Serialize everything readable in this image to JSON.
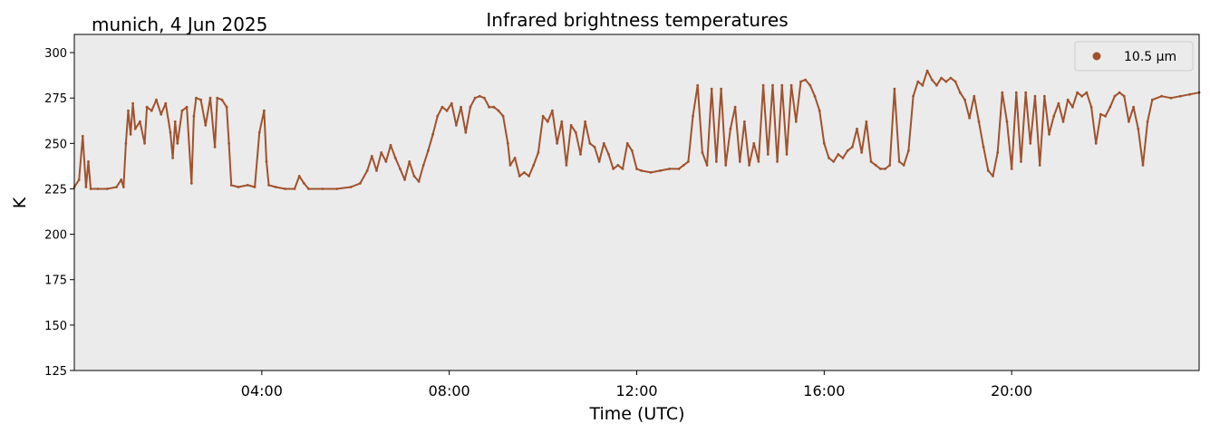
{
  "chart_data": {
    "type": "scatter",
    "title": "Infrared brightness temperatures",
    "subtitle": "munich, 4 Jun 2025",
    "xlabel": "Time (UTC)",
    "ylabel": "K",
    "x_unit": "hours UTC",
    "xlim": [
      0,
      24
    ],
    "ylim": [
      125,
      310
    ],
    "yticks": [
      125,
      150,
      175,
      200,
      225,
      250,
      275,
      300
    ],
    "xticks": [
      {
        "value": 4,
        "label": "04:00"
      },
      {
        "value": 8,
        "label": "08:00"
      },
      {
        "value": 12,
        "label": "12:00"
      },
      {
        "value": 16,
        "label": "16:00"
      },
      {
        "value": 20,
        "label": "20:00"
      }
    ],
    "grid": false,
    "background": "#ebebeb",
    "legend_position": "top-right",
    "series": [
      {
        "name": "10.5 µm",
        "color": "#a0522d",
        "points": [
          [
            0.0,
            226
          ],
          [
            0.1,
            230
          ],
          [
            0.18,
            254
          ],
          [
            0.25,
            226
          ],
          [
            0.3,
            240
          ],
          [
            0.35,
            225
          ],
          [
            0.5,
            225
          ],
          [
            0.7,
            225
          ],
          [
            0.9,
            226
          ],
          [
            1.0,
            230
          ],
          [
            1.05,
            226
          ],
          [
            1.1,
            250
          ],
          [
            1.15,
            268
          ],
          [
            1.2,
            255
          ],
          [
            1.25,
            272
          ],
          [
            1.3,
            258
          ],
          [
            1.4,
            262
          ],
          [
            1.5,
            250
          ],
          [
            1.55,
            270
          ],
          [
            1.65,
            268
          ],
          [
            1.75,
            274
          ],
          [
            1.85,
            266
          ],
          [
            1.95,
            272
          ],
          [
            2.05,
            256
          ],
          [
            2.1,
            242
          ],
          [
            2.15,
            262
          ],
          [
            2.2,
            250
          ],
          [
            2.3,
            268
          ],
          [
            2.4,
            270
          ],
          [
            2.5,
            228
          ],
          [
            2.55,
            265
          ],
          [
            2.6,
            275
          ],
          [
            2.7,
            274
          ],
          [
            2.8,
            260
          ],
          [
            2.9,
            275
          ],
          [
            3.0,
            248
          ],
          [
            3.05,
            275
          ],
          [
            3.15,
            274
          ],
          [
            3.25,
            270
          ],
          [
            3.3,
            250
          ],
          [
            3.35,
            227
          ],
          [
            3.5,
            226
          ],
          [
            3.7,
            227
          ],
          [
            3.85,
            226
          ],
          [
            3.95,
            256
          ],
          [
            4.05,
            268
          ],
          [
            4.1,
            240
          ],
          [
            4.15,
            227
          ],
          [
            4.3,
            226
          ],
          [
            4.5,
            225
          ],
          [
            4.7,
            225
          ],
          [
            4.8,
            232
          ],
          [
            4.9,
            228
          ],
          [
            5.0,
            225
          ],
          [
            5.3,
            225
          ],
          [
            5.6,
            225
          ],
          [
            5.9,
            226
          ],
          [
            6.1,
            228
          ],
          [
            6.25,
            235
          ],
          [
            6.35,
            243
          ],
          [
            6.45,
            235
          ],
          [
            6.55,
            245
          ],
          [
            6.65,
            240
          ],
          [
            6.75,
            249
          ],
          [
            6.85,
            242
          ],
          [
            6.95,
            236
          ],
          [
            7.05,
            230
          ],
          [
            7.15,
            240
          ],
          [
            7.25,
            232
          ],
          [
            7.35,
            229
          ],
          [
            7.45,
            238
          ],
          [
            7.55,
            246
          ],
          [
            7.65,
            255
          ],
          [
            7.75,
            265
          ],
          [
            7.85,
            270
          ],
          [
            7.95,
            268
          ],
          [
            8.05,
            272
          ],
          [
            8.15,
            260
          ],
          [
            8.25,
            270
          ],
          [
            8.35,
            256
          ],
          [
            8.45,
            270
          ],
          [
            8.55,
            275
          ],
          [
            8.65,
            276
          ],
          [
            8.75,
            275
          ],
          [
            8.85,
            270
          ],
          [
            8.95,
            270
          ],
          [
            9.05,
            268
          ],
          [
            9.15,
            265
          ],
          [
            9.25,
            250
          ],
          [
            9.3,
            238
          ],
          [
            9.4,
            242
          ],
          [
            9.5,
            232
          ],
          [
            9.6,
            234
          ],
          [
            9.7,
            232
          ],
          [
            9.8,
            238
          ],
          [
            9.9,
            245
          ],
          [
            10.0,
            265
          ],
          [
            10.1,
            262
          ],
          [
            10.2,
            268
          ],
          [
            10.3,
            250
          ],
          [
            10.4,
            262
          ],
          [
            10.5,
            238
          ],
          [
            10.6,
            260
          ],
          [
            10.7,
            256
          ],
          [
            10.8,
            244
          ],
          [
            10.9,
            262
          ],
          [
            11.0,
            250
          ],
          [
            11.1,
            248
          ],
          [
            11.2,
            240
          ],
          [
            11.3,
            250
          ],
          [
            11.4,
            244
          ],
          [
            11.5,
            236
          ],
          [
            11.6,
            238
          ],
          [
            11.7,
            236
          ],
          [
            11.8,
            250
          ],
          [
            11.9,
            246
          ],
          [
            12.0,
            236
          ],
          [
            12.1,
            235
          ],
          [
            12.3,
            234
          ],
          [
            12.5,
            235
          ],
          [
            12.7,
            236
          ],
          [
            12.9,
            236
          ],
          [
            13.0,
            238
          ],
          [
            13.1,
            240
          ],
          [
            13.2,
            265
          ],
          [
            13.3,
            282
          ],
          [
            13.4,
            245
          ],
          [
            13.5,
            238
          ],
          [
            13.6,
            280
          ],
          [
            13.7,
            240
          ],
          [
            13.8,
            280
          ],
          [
            13.9,
            238
          ],
          [
            14.0,
            258
          ],
          [
            14.1,
            270
          ],
          [
            14.2,
            240
          ],
          [
            14.3,
            262
          ],
          [
            14.4,
            238
          ],
          [
            14.5,
            250
          ],
          [
            14.6,
            240
          ],
          [
            14.7,
            282
          ],
          [
            14.8,
            244
          ],
          [
            14.9,
            282
          ],
          [
            15.0,
            240
          ],
          [
            15.1,
            282
          ],
          [
            15.2,
            244
          ],
          [
            15.3,
            282
          ],
          [
            15.4,
            262
          ],
          [
            15.5,
            284
          ],
          [
            15.6,
            285
          ],
          [
            15.7,
            282
          ],
          [
            15.8,
            276
          ],
          [
            15.9,
            268
          ],
          [
            16.0,
            250
          ],
          [
            16.1,
            242
          ],
          [
            16.2,
            240
          ],
          [
            16.3,
            244
          ],
          [
            16.4,
            242
          ],
          [
            16.5,
            246
          ],
          [
            16.6,
            248
          ],
          [
            16.7,
            258
          ],
          [
            16.8,
            245
          ],
          [
            16.9,
            262
          ],
          [
            17.0,
            240
          ],
          [
            17.1,
            238
          ],
          [
            17.2,
            236
          ],
          [
            17.3,
            236
          ],
          [
            17.4,
            238
          ],
          [
            17.5,
            280
          ],
          [
            17.6,
            240
          ],
          [
            17.7,
            238
          ],
          [
            17.8,
            246
          ],
          [
            17.9,
            276
          ],
          [
            18.0,
            284
          ],
          [
            18.1,
            282
          ],
          [
            18.2,
            290
          ],
          [
            18.3,
            285
          ],
          [
            18.4,
            282
          ],
          [
            18.5,
            286
          ],
          [
            18.6,
            284
          ],
          [
            18.7,
            286
          ],
          [
            18.8,
            284
          ],
          [
            18.9,
            278
          ],
          [
            19.0,
            274
          ],
          [
            19.1,
            264
          ],
          [
            19.2,
            276
          ],
          [
            19.3,
            262
          ],
          [
            19.4,
            248
          ],
          [
            19.5,
            235
          ],
          [
            19.6,
            232
          ],
          [
            19.7,
            245
          ],
          [
            19.8,
            278
          ],
          [
            19.9,
            262
          ],
          [
            20.0,
            236
          ],
          [
            20.1,
            278
          ],
          [
            20.2,
            240
          ],
          [
            20.3,
            278
          ],
          [
            20.4,
            250
          ],
          [
            20.5,
            276
          ],
          [
            20.6,
            238
          ],
          [
            20.7,
            276
          ],
          [
            20.8,
            255
          ],
          [
            20.9,
            265
          ],
          [
            21.0,
            272
          ],
          [
            21.1,
            262
          ],
          [
            21.2,
            274
          ],
          [
            21.3,
            270
          ],
          [
            21.4,
            278
          ],
          [
            21.5,
            276
          ],
          [
            21.6,
            278
          ],
          [
            21.7,
            270
          ],
          [
            21.8,
            250
          ],
          [
            21.9,
            266
          ],
          [
            22.0,
            265
          ],
          [
            22.1,
            270
          ],
          [
            22.2,
            276
          ],
          [
            22.3,
            278
          ],
          [
            22.4,
            276
          ],
          [
            22.5,
            262
          ],
          [
            22.6,
            270
          ],
          [
            22.7,
            258
          ],
          [
            22.8,
            238
          ],
          [
            22.9,
            262
          ],
          [
            23.0,
            274
          ],
          [
            23.2,
            276
          ],
          [
            23.4,
            275
          ],
          [
            23.6,
            276
          ],
          [
            23.8,
            277
          ],
          [
            24.0,
            278
          ]
        ]
      }
    ]
  }
}
